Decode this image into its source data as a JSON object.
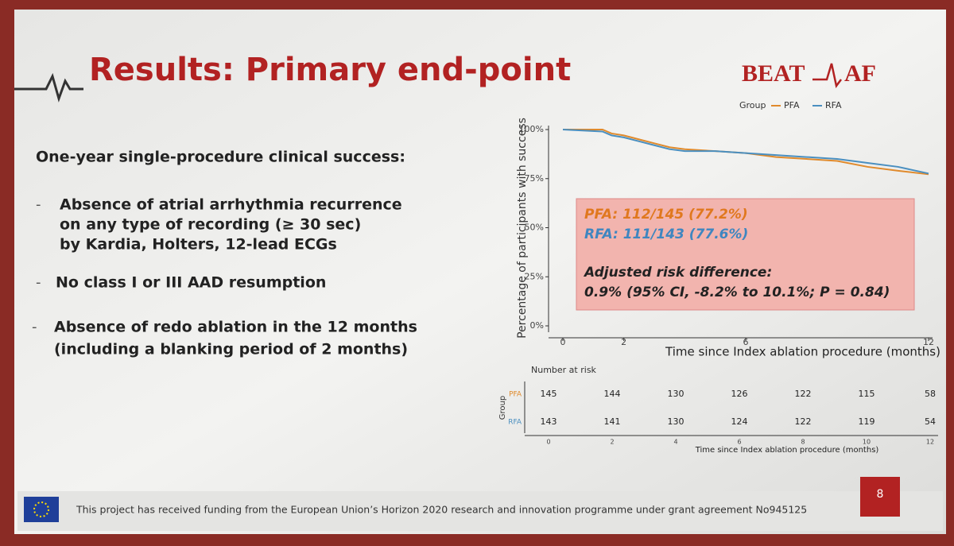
{
  "slide": {
    "title": "Results: Primary end-point",
    "logo": [
      "BEAT",
      "AF"
    ],
    "heading": "One-year single-procedure clinical success:",
    "bullets": [
      [
        "Absence of atrial arrhythmia recurrence",
        "on any type of recording (≥ 30 sec)",
        "by Kardia, Holters, 12-lead ECGs"
      ],
      [
        "No class I or III AAD resumption"
      ],
      [
        "Absence of redo ablation in the 12 months",
        "(including a blanking period of 2 months)"
      ]
    ],
    "footer": "This project has received funding from the European Union’s Horizon 2020 research and innovation programme under grant agreement No945125",
    "page": "8"
  },
  "chart_data": {
    "type": "line",
    "ylabel": "Percentage of participants with success",
    "xlabel": "Time since Index ablation procedure (months)",
    "legend_title": "Group",
    "x": [
      0,
      1.3,
      1.6,
      2,
      2.5,
      3,
      3.5,
      4,
      5,
      6,
      7,
      8,
      9,
      10,
      11,
      12
    ],
    "series": [
      {
        "name": "PFA",
        "color": "#e08a2c",
        "values": [
          100,
          100,
          98,
          97,
          95,
          93,
          91,
          90,
          89,
          88,
          86,
          85,
          84,
          81,
          79,
          77.2
        ]
      },
      {
        "name": "RFA",
        "color": "#4a8fc0",
        "values": [
          100,
          99,
          97,
          96,
          94,
          92,
          90,
          89,
          89,
          88,
          87,
          86,
          85,
          83,
          81,
          77.6
        ]
      }
    ],
    "xlim": [
      0,
      12
    ],
    "xticks": [
      0,
      2,
      6,
      12
    ],
    "ylim": [
      0,
      100
    ],
    "yticks": [
      {
        "value": 0,
        "label": "0%"
      },
      {
        "value": 25,
        "label": "25%"
      },
      {
        "value": 50,
        "label": "50%"
      },
      {
        "value": 75,
        "label": "75%"
      },
      {
        "value": 100,
        "label": "100%"
      }
    ],
    "annotation": [
      "PFA: 112/145 (77.2%)",
      "RFA: 111/143 (77.6%)",
      "Adjusted risk difference:",
      "0.9% (95% CI, -8.2% to 10.1%; P = 0.84)"
    ]
  },
  "risk_table": {
    "title": "Number at risk",
    "group_label": "Group",
    "xlabel": "Time since Index ablation procedure (months)",
    "times": [
      "0",
      "2",
      "4",
      "6",
      "8",
      "10",
      "12"
    ],
    "rows": [
      {
        "label": "PFA",
        "counts": [
          "145",
          "144",
          "130",
          "126",
          "122",
          "115",
          "58"
        ]
      },
      {
        "label": "RFA",
        "counts": [
          "143",
          "141",
          "130",
          "124",
          "122",
          "119",
          "54"
        ]
      }
    ]
  }
}
